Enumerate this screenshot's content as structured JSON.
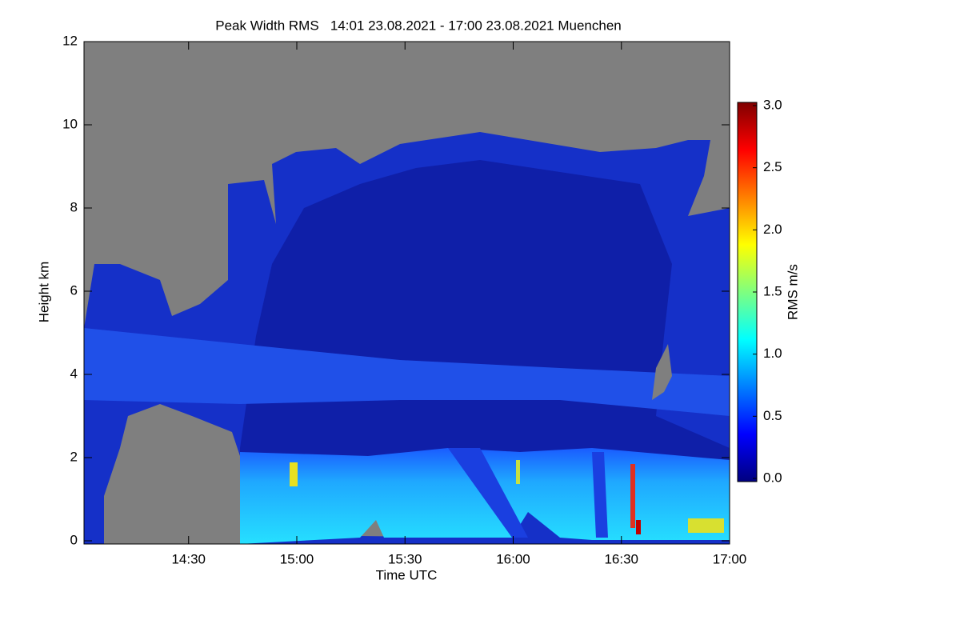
{
  "chart_data": {
    "type": "heatmap",
    "title": "Peak Width RMS   14:01 23.08.2021 - 17:00 23.08.2021 Muenchen",
    "x_label": "Time UTC",
    "y_label": "Height km",
    "xlim": [
      14.0167,
      17.0
    ],
    "xticks": [
      {
        "value": 14.5,
        "label": "14:30"
      },
      {
        "value": 15.0,
        "label": "15:00"
      },
      {
        "value": 15.5,
        "label": "15:30"
      },
      {
        "value": 16.0,
        "label": "16:00"
      },
      {
        "value": 16.5,
        "label": "16:30"
      },
      {
        "value": 17.0,
        "label": "17:00"
      }
    ],
    "ylim": [
      0,
      12
    ],
    "yticks": [
      0,
      2,
      4,
      6,
      8,
      10,
      12
    ],
    "colorbar": {
      "label": "RMS m/s",
      "colormap": "jet",
      "lim": [
        0,
        3
      ],
      "ticks": [
        {
          "value": 0,
          "label": "0.0"
        },
        0.5,
        {
          "value": 1,
          "label": "1.0"
        },
        1.5,
        {
          "value": 2,
          "label": "2.0"
        },
        2.5,
        {
          "value": 3,
          "label": "3.0"
        }
      ]
    }
  }
}
